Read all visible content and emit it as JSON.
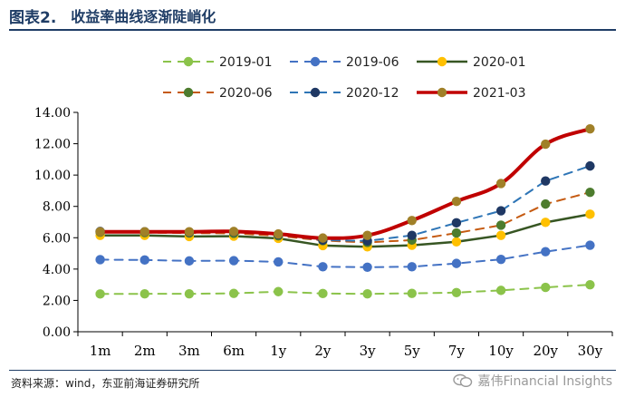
{
  "header": {
    "figure_label": "图表2.",
    "title": "收益率曲线逐渐陡峭化"
  },
  "footer": {
    "source": "资料来源：wind，东亚前海证券研究所",
    "watermark": "嘉伟Financial Insights",
    "watermark_icon": "wechat-icon"
  },
  "chart_data": {
    "type": "line",
    "title": "",
    "xlabel": "",
    "ylabel": "",
    "categories": [
      "1m",
      "2m",
      "3m",
      "6m",
      "1y",
      "2y",
      "3y",
      "5y",
      "7y",
      "10y",
      "20y",
      "30y"
    ],
    "ylim": [
      0,
      14
    ],
    "yticks": [
      "0.00",
      "2.00",
      "4.00",
      "6.00",
      "8.00",
      "10.00",
      "12.00",
      "14.00"
    ],
    "grid": false,
    "legend_placement": "top",
    "series": [
      {
        "name": "2019-01",
        "color": "#8bc34a",
        "style": "dashed",
        "width": 2,
        "smooth": false,
        "values": [
          2.41,
          2.42,
          2.42,
          2.45,
          2.56,
          2.44,
          2.42,
          2.45,
          2.5,
          2.64,
          2.83,
          3.0
        ]
      },
      {
        "name": "2019-06",
        "color": "#4472c4",
        "style": "dashed",
        "width": 2,
        "smooth": false,
        "values": [
          4.6,
          4.58,
          4.52,
          4.54,
          4.46,
          4.15,
          4.12,
          4.15,
          4.36,
          4.62,
          5.11,
          5.52
        ]
      },
      {
        "name": "2020-01",
        "color": "#375623",
        "style": "solid",
        "width": 2.5,
        "smooth": false,
        "marker_color": "#ffc000",
        "values": [
          6.15,
          6.15,
          6.08,
          6.1,
          5.96,
          5.5,
          5.42,
          5.52,
          5.74,
          6.15,
          6.98,
          7.5
        ]
      },
      {
        "name": "2020-06",
        "color": "#c55a11",
        "style": "dashed",
        "width": 2,
        "smooth": false,
        "marker_color": "#4d7c2e",
        "values": [
          6.35,
          6.33,
          6.3,
          6.28,
          6.12,
          5.82,
          5.7,
          5.85,
          6.3,
          6.8,
          8.15,
          8.9
        ]
      },
      {
        "name": "2020-12",
        "color": "#2e75b6",
        "style": "dashed",
        "width": 2,
        "smooth": false,
        "marker_color": "#1f3864",
        "values": [
          6.4,
          6.38,
          6.36,
          6.38,
          6.2,
          5.85,
          5.8,
          6.15,
          6.95,
          7.72,
          9.62,
          10.58
        ]
      },
      {
        "name": "2021-03",
        "color": "#c00000",
        "style": "solid",
        "width": 4,
        "smooth": true,
        "marker_color": "#a08028",
        "values": [
          6.38,
          6.38,
          6.38,
          6.4,
          6.24,
          5.98,
          6.15,
          7.1,
          8.32,
          9.46,
          11.97,
          12.95
        ]
      }
    ]
  }
}
